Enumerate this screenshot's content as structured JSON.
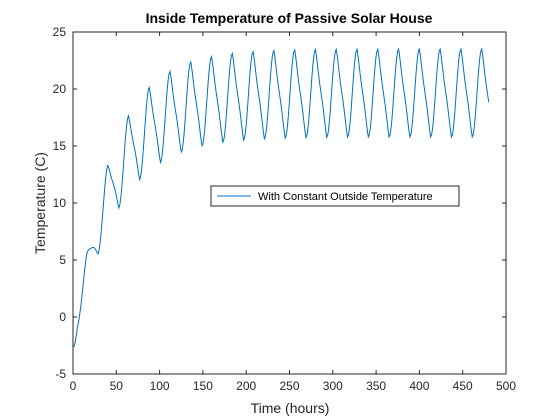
{
  "colors": {
    "series": "#0072bd",
    "axis": "#262626",
    "background": "#ffffff"
  },
  "chart_data": {
    "type": "line",
    "title": "Inside Temperature of Passive Solar House",
    "xlabel": "Time (hours)",
    "ylabel": "Temperature (C)",
    "xlim": [
      0,
      500
    ],
    "ylim": [
      -5,
      25
    ],
    "xticks": [
      0,
      50,
      100,
      150,
      200,
      250,
      300,
      350,
      400,
      450,
      500
    ],
    "yticks": [
      -5,
      0,
      5,
      10,
      15,
      20,
      25
    ],
    "grid": false,
    "legend_position": "center-right",
    "series": [
      {
        "name": "With Constant Outside Temperature",
        "color": "#0072bd",
        "x_start": 0,
        "x_end": 480,
        "step": 1,
        "period": 24,
        "baseline": -2.7,
        "ultimate_min": 15.8,
        "ultimate_max": 23.5,
        "time_constant": 45,
        "amplitude_growth": 30,
        "peak_hour": 16,
        "trough_hour": 5,
        "dip_start": 0,
        "dip_end": 5,
        "dip_depth": 0.55
      }
    ]
  }
}
